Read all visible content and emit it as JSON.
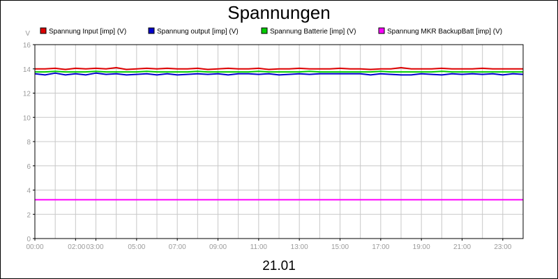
{
  "chart_data": {
    "type": "line",
    "title": "Spannungen",
    "xlabel": "21.01",
    "ylabel": "V",
    "ylim": [
      0,
      16
    ],
    "yticks": [
      0,
      2,
      4,
      6,
      8,
      10,
      12,
      14,
      16
    ],
    "xlim": [
      0,
      24
    ],
    "xticks": [
      {
        "v": 0,
        "label": "00:00"
      },
      {
        "v": 2,
        "label": "02:00"
      },
      {
        "v": 3,
        "label": "03:00"
      },
      {
        "v": 5,
        "label": "05:00"
      },
      {
        "v": 7,
        "label": "07:00"
      },
      {
        "v": 9,
        "label": "09:00"
      },
      {
        "v": 11,
        "label": "11:00"
      },
      {
        "v": 13,
        "label": "13:00"
      },
      {
        "v": 15,
        "label": "15:00"
      },
      {
        "v": 17,
        "label": "17:00"
      },
      {
        "v": 19,
        "label": "19:00"
      },
      {
        "v": 21,
        "label": "21:00"
      },
      {
        "v": 23,
        "label": "23:00"
      }
    ],
    "grid": true,
    "legend_position": "top",
    "x": [
      0,
      0.5,
      1,
      1.5,
      2,
      2.5,
      3,
      3.5,
      4,
      4.5,
      5,
      5.5,
      6,
      6.5,
      7,
      7.5,
      8,
      8.5,
      9,
      9.5,
      10,
      10.5,
      11,
      11.5,
      12,
      12.5,
      13,
      13.5,
      14,
      14.5,
      15,
      15.5,
      16,
      16.5,
      17,
      17.5,
      18,
      18.5,
      19,
      19.5,
      20,
      20.5,
      21,
      21.5,
      22,
      22.5,
      23,
      23.5,
      24
    ],
    "series": [
      {
        "name": "Spannung Input [imp] (V)",
        "color": "#dd0000",
        "values": [
          14.0,
          14.0,
          14.05,
          13.95,
          14.05,
          14.0,
          14.05,
          14.0,
          14.1,
          13.95,
          14.0,
          14.05,
          14.0,
          14.05,
          14.0,
          14.0,
          14.05,
          13.95,
          14.0,
          14.05,
          14.0,
          14.0,
          14.05,
          13.95,
          14.0,
          14.0,
          14.05,
          14.0,
          14.0,
          14.0,
          14.05,
          14.0,
          14.0,
          13.95,
          14.0,
          14.0,
          14.1,
          14.0,
          14.0,
          14.0,
          14.05,
          14.0,
          14.0,
          14.0,
          14.05,
          14.0,
          14.0,
          14.0,
          14.0
        ]
      },
      {
        "name": "Spannung output [imp] (V)",
        "color": "#0000cc",
        "values": [
          13.6,
          13.5,
          13.65,
          13.5,
          13.6,
          13.5,
          13.65,
          13.55,
          13.6,
          13.5,
          13.55,
          13.6,
          13.5,
          13.6,
          13.5,
          13.55,
          13.6,
          13.55,
          13.6,
          13.5,
          13.6,
          13.6,
          13.55,
          13.6,
          13.5,
          13.55,
          13.6,
          13.55,
          13.6,
          13.6,
          13.6,
          13.6,
          13.6,
          13.5,
          13.6,
          13.55,
          13.5,
          13.5,
          13.6,
          13.55,
          13.5,
          13.6,
          13.55,
          13.6,
          13.55,
          13.6,
          13.5,
          13.6,
          13.55
        ]
      },
      {
        "name": "Spannung Batterie [imp] (V)",
        "color": "#00cc00",
        "values": [
          13.75,
          13.75,
          13.8,
          13.75,
          13.75,
          13.75,
          13.8,
          13.75,
          13.75,
          13.75,
          13.75,
          13.8,
          13.75,
          13.75,
          13.75,
          13.75,
          13.8,
          13.75,
          13.75,
          13.75,
          13.75,
          13.75,
          13.8,
          13.75,
          13.75,
          13.75,
          13.75,
          13.8,
          13.75,
          13.75,
          13.75,
          13.75,
          13.75,
          13.75,
          13.8,
          13.75,
          13.75,
          13.75,
          13.75,
          13.75,
          13.8,
          13.75,
          13.75,
          13.75,
          13.75,
          13.75,
          13.75,
          13.75,
          13.75
        ]
      },
      {
        "name": "Spannung MKR BackupBatt [imp] (V)",
        "color": "#ff00ff",
        "values": [
          3.2,
          3.2,
          3.2,
          3.2,
          3.2,
          3.2,
          3.2,
          3.2,
          3.2,
          3.2,
          3.2,
          3.2,
          3.2,
          3.2,
          3.2,
          3.2,
          3.2,
          3.2,
          3.2,
          3.2,
          3.2,
          3.2,
          3.2,
          3.2,
          3.2,
          3.2,
          3.2,
          3.2,
          3.2,
          3.2,
          3.2,
          3.2,
          3.2,
          3.2,
          3.2,
          3.2,
          3.2,
          3.2,
          3.2,
          3.2,
          3.2,
          3.2,
          3.2,
          3.2,
          3.2,
          3.2,
          3.2,
          3.2,
          3.2
        ]
      }
    ]
  }
}
